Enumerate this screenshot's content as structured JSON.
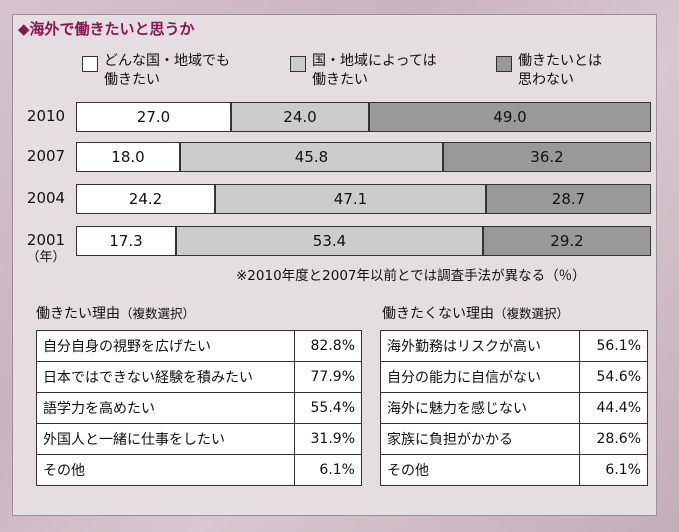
{
  "title": "◆海外で働きたいと思うか",
  "legend": [
    {
      "label": "どんな国・地域でも\n働きたい",
      "color": "#ffffff"
    },
    {
      "label": "国・地域によっては\n働きたい",
      "color": "#cccccc"
    },
    {
      "label": "働きたいとは\n思わない",
      "color": "#999999"
    }
  ],
  "year_unit": "（年）",
  "chart_data": {
    "type": "bar",
    "orientation": "horizontal-stacked",
    "categories": [
      "2010",
      "2007",
      "2004",
      "2001"
    ],
    "series": [
      {
        "name": "どんな国・地域でも働きたい",
        "values": [
          27.0,
          18.0,
          24.2,
          17.3
        ],
        "labels": [
          "27.0",
          "18.0",
          "24.2",
          "17.3"
        ]
      },
      {
        "name": "国・地域によっては働きたい",
        "values": [
          24.0,
          45.8,
          47.1,
          53.4
        ],
        "labels": [
          "24.0",
          "45.8",
          "47.1",
          "53.4"
        ]
      },
      {
        "name": "働きたいとは思わない",
        "values": [
          49.0,
          36.2,
          28.7,
          29.2
        ],
        "labels": [
          "49.0",
          "36.2",
          "28.7",
          "29.2"
        ]
      }
    ],
    "xlim": [
      0,
      100
    ]
  },
  "note": "※2010年度と2007年以前とでは調査手法が異なる（％）",
  "reasons_yes": {
    "title": "働きたい理由",
    "subtitle": "（複数選択）",
    "rows": [
      {
        "label": "自分自身の視野を広げたい",
        "pct": "82.8%"
      },
      {
        "label": "日本ではできない経験を積みたい",
        "pct": "77.9%"
      },
      {
        "label": "語学力を高めたい",
        "pct": "55.4%"
      },
      {
        "label": "外国人と一緒に仕事をしたい",
        "pct": "31.9%"
      },
      {
        "label": "その他",
        "pct": "6.1%"
      }
    ]
  },
  "reasons_no": {
    "title": "働きたくない理由",
    "subtitle": "（複数選択）",
    "rows": [
      {
        "label": "海外勤務はリスクが高い",
        "pct": "56.1%"
      },
      {
        "label": "自分の能力に自信がない",
        "pct": "54.6%"
      },
      {
        "label": "海外に魅力を感じない",
        "pct": "44.4%"
      },
      {
        "label": "家族に負担がかかる",
        "pct": "28.6%"
      },
      {
        "label": "その他",
        "pct": "6.1%"
      }
    ]
  }
}
